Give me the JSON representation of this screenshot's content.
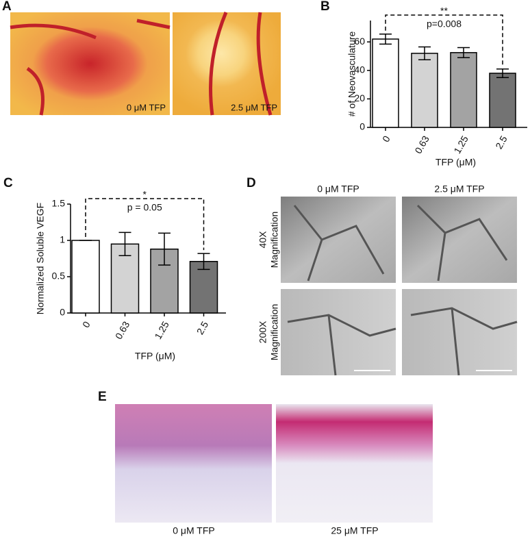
{
  "panels": {
    "A": {
      "label": "A",
      "captions": [
        "0 μM TFP",
        "2.5 μM TFP"
      ]
    },
    "D": {
      "label": "D",
      "columns": [
        "0 μM TFP",
        "2.5 μM TFP"
      ],
      "rows": [
        [
          "40X",
          "Magnification"
        ],
        [
          "200X",
          "Magnification"
        ]
      ]
    },
    "E": {
      "label": "E",
      "captions": [
        "0 μM TFP",
        "25 μM TFP"
      ]
    }
  },
  "chart_data": [
    {
      "type": "bar",
      "panel_label": "B",
      "ylabel": "# of Neovasculature",
      "xlabel": "TFP (μM)",
      "categories": [
        "0",
        "0.63",
        "1.25",
        "2.5"
      ],
      "values": [
        62,
        52,
        52.5,
        38
      ],
      "errors": [
        3.5,
        4.5,
        3.5,
        3
      ],
      "colors": [
        "#ffffff",
        "#d3d3d3",
        "#a3a3a3",
        "#737373"
      ],
      "ylim": [
        0,
        75
      ],
      "yticks": [
        0,
        20,
        40,
        60
      ],
      "annotations": [
        "**",
        "p=0.008"
      ]
    },
    {
      "type": "bar",
      "panel_label": "C",
      "ylabel": "Normalized Soluble VEGF",
      "xlabel": "TFP (μM)",
      "categories": [
        "0",
        "0.63",
        "1.25",
        "2.5"
      ],
      "values": [
        1,
        0.95,
        0.88,
        0.71
      ],
      "errors": [
        0,
        0.16,
        0.22,
        0.11
      ],
      "colors": [
        "#ffffff",
        "#d3d3d3",
        "#a3a3a3",
        "#737373"
      ],
      "ylim": [
        0,
        1.5
      ],
      "yticks": [
        0,
        0.5,
        1,
        1.5
      ],
      "annotations": [
        "*",
        "p = 0.05"
      ]
    }
  ]
}
